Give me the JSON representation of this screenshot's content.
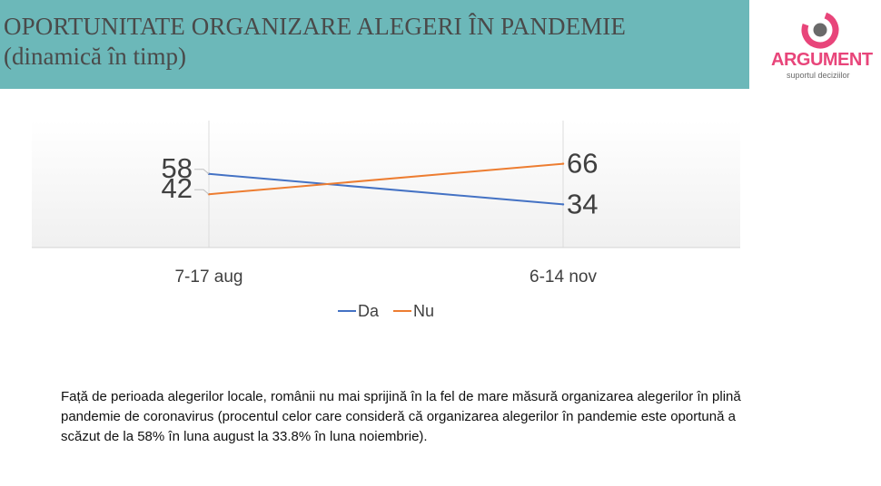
{
  "header": {
    "title": "OPORTUNITATE ORGANIZARE ALEGERI ÎN PANDEMIE",
    "subtitle": "(dinamică în timp)"
  },
  "logo": {
    "name": "ARGUMENT",
    "tagline": "suportul deciziilor",
    "icon": "argument-logo-icon",
    "colors": {
      "pink": "#e8457a",
      "gray": "#6a6a6a"
    }
  },
  "colors": {
    "header_band": "#6cb8b9",
    "da": "#4472c4",
    "nu": "#ed7d31"
  },
  "chart_data": {
    "type": "line",
    "categories": [
      "7-17 aug",
      "6-14 nov"
    ],
    "series": [
      {
        "name": "Da",
        "values": [
          58,
          34
        ],
        "labels": [
          "58",
          "34"
        ],
        "color": "#4472c4"
      },
      {
        "name": "Nu",
        "values": [
          42,
          66
        ],
        "labels": [
          "42",
          "66"
        ],
        "color": "#ed7d31"
      }
    ],
    "ylim": [
      0,
      100
    ],
    "legend": "bottom",
    "grid": true
  },
  "caption": "Față de perioada alegerilor locale, românii nu mai sprijină în la fel de mare măsură organizarea alegerilor în plină pandemie de coronavirus (procentul celor care consideră că organizarea alegerilor în pandemie este oportună a scăzut de la 58% în luna august la 33.8% în luna noiembrie)."
}
